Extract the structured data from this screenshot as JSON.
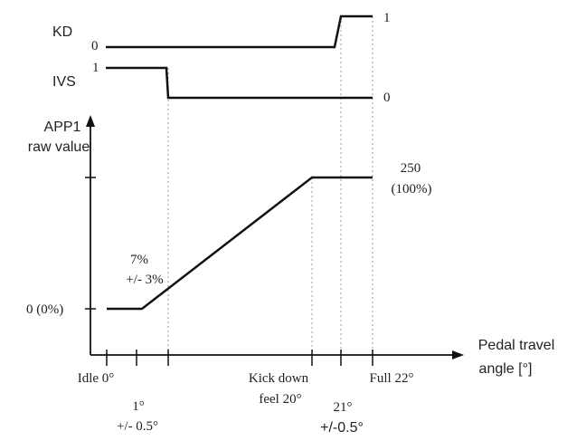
{
  "kd": {
    "label": "KD",
    "low": "0",
    "high": "1"
  },
  "ivs": {
    "label": "IVS",
    "high": "1",
    "low": "0"
  },
  "y_axis": {
    "label_line1": "APP1",
    "label_line2": "raw value",
    "zero_label": "0 (0%)",
    "max_label_line1": "250",
    "max_label_line2": "(100%)"
  },
  "x_axis": {
    "label_line1": "Pedal travel",
    "label_line2": "angle [°]",
    "idle_label": "Idle 0°",
    "p1_line1": "1°",
    "p1_line2": "+/- 0.5°",
    "kd_line1": "Kick down",
    "kd_line2": "feel 20°",
    "p21_line1": "21°",
    "p21_line2": "+/-0.5°",
    "full_label": "Full 22°"
  },
  "annotation": {
    "line1": "7%",
    "line2": "+/- 3%"
  }
}
